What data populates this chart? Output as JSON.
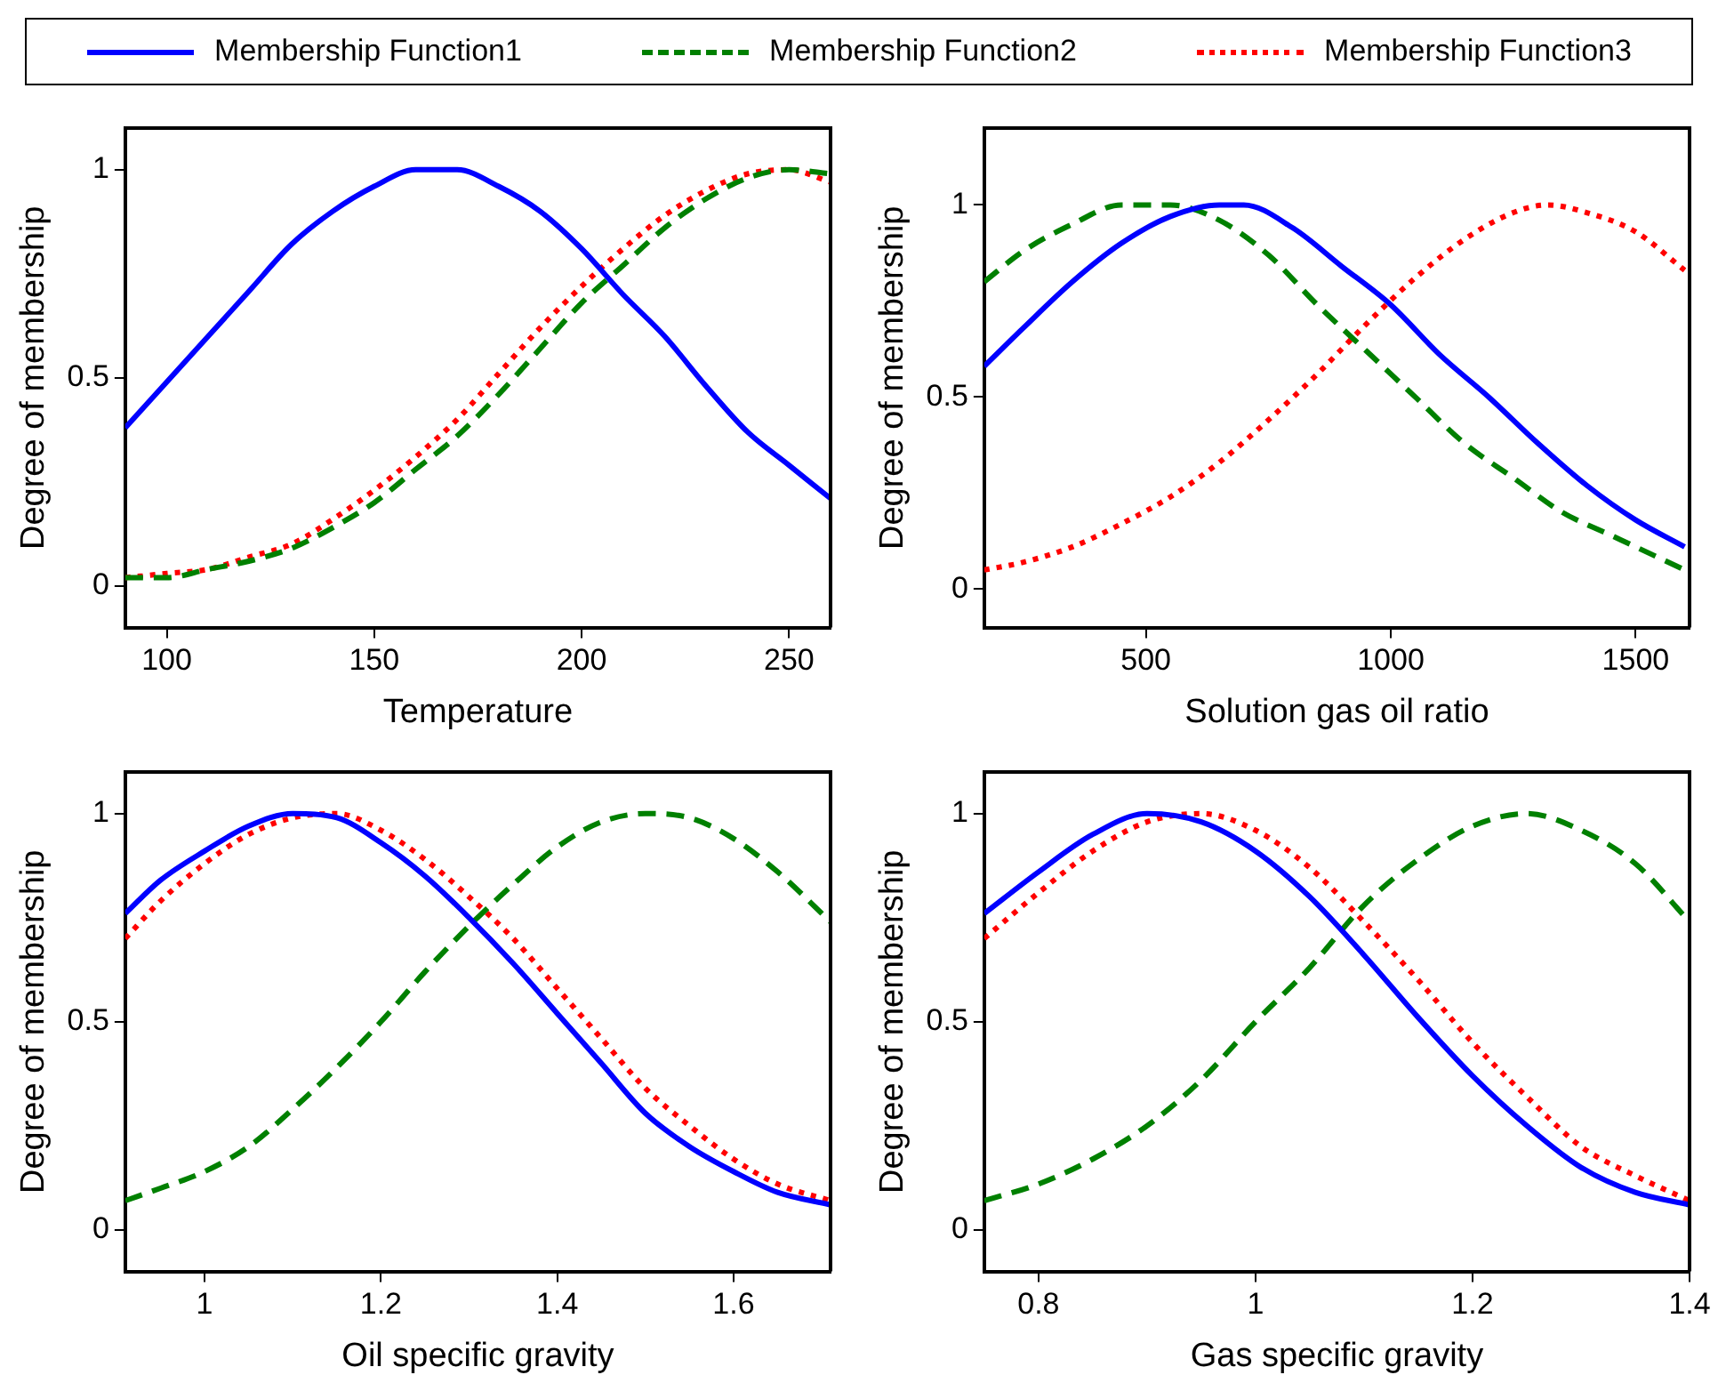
{
  "chart_data": [
    {
      "type": "line",
      "xlabel": "Temperature",
      "ylabel": "Degree of membership",
      "xlim": [
        90,
        260
      ],
      "xticks": [
        100,
        150,
        200,
        250
      ],
      "ylim": [
        -0.1,
        1.1
      ],
      "yticks": [
        0,
        0.5,
        1
      ],
      "grid": false,
      "legend": "top",
      "marker": "none",
      "series": [
        {
          "name": "Membership Function1",
          "color": "#0000ff",
          "line_style": "solid",
          "x": [
            90,
            100,
            110,
            120,
            130,
            140,
            150,
            160,
            165,
            170,
            180,
            190,
            200,
            210,
            220,
            230,
            240,
            250,
            260
          ],
          "values": [
            0.38,
            0.49,
            0.6,
            0.71,
            0.82,
            0.9,
            0.96,
            1.0,
            1.0,
            1.0,
            0.96,
            0.9,
            0.81,
            0.7,
            0.6,
            0.48,
            0.37,
            0.29,
            0.21
          ]
        },
        {
          "name": "Membership Function2",
          "color": "#008000",
          "line_style": "dashed",
          "x": [
            90,
            100,
            110,
            120,
            130,
            140,
            150,
            160,
            170,
            180,
            190,
            200,
            210,
            220,
            230,
            240,
            250,
            260
          ],
          "values": [
            0.02,
            0.02,
            0.04,
            0.06,
            0.09,
            0.14,
            0.2,
            0.28,
            0.36,
            0.46,
            0.57,
            0.68,
            0.77,
            0.86,
            0.93,
            0.98,
            1.0,
            0.99
          ]
        },
        {
          "name": "Membership Function3",
          "color": "#ff0000",
          "line_style": "dotted",
          "x": [
            90,
            100,
            110,
            120,
            130,
            140,
            150,
            160,
            170,
            180,
            190,
            200,
            210,
            220,
            230,
            240,
            250,
            260
          ],
          "values": [
            0.02,
            0.03,
            0.04,
            0.07,
            0.1,
            0.16,
            0.23,
            0.31,
            0.4,
            0.51,
            0.62,
            0.72,
            0.81,
            0.89,
            0.95,
            0.99,
            1.0,
            0.97
          ]
        }
      ]
    },
    {
      "type": "line",
      "xlabel": "Solution gas oil ratio",
      "ylabel": "Degree of membership",
      "xlim": [
        170,
        1610
      ],
      "xticks": [
        500,
        1000,
        1500
      ],
      "ylim": [
        -0.1,
        1.2
      ],
      "yticks": [
        0,
        0.5,
        1
      ],
      "grid": false,
      "marker": "none",
      "series": [
        {
          "color": "#0000ff",
          "line_style": "solid",
          "x": [
            170,
            250,
            350,
            450,
            550,
            650,
            700,
            800,
            900,
            1000,
            1100,
            1200,
            1300,
            1400,
            1500,
            1600
          ],
          "values": [
            0.58,
            0.68,
            0.8,
            0.9,
            0.97,
            1.0,
            1.0,
            0.94,
            0.84,
            0.74,
            0.61,
            0.5,
            0.38,
            0.27,
            0.18,
            0.11
          ]
        },
        {
          "color": "#008000",
          "line_style": "dashed",
          "x": [
            170,
            250,
            350,
            450,
            550,
            650,
            750,
            850,
            950,
            1050,
            1150,
            1250,
            1350,
            1450,
            1600
          ],
          "values": [
            0.8,
            0.88,
            0.95,
            1.0,
            1.0,
            0.96,
            0.87,
            0.74,
            0.62,
            0.5,
            0.38,
            0.29,
            0.2,
            0.14,
            0.05
          ]
        },
        {
          "color": "#ff0000",
          "line_style": "dotted",
          "x": [
            170,
            250,
            350,
            450,
            550,
            650,
            750,
            850,
            950,
            1050,
            1150,
            1250,
            1320,
            1400,
            1500,
            1600
          ],
          "values": [
            0.05,
            0.07,
            0.11,
            0.17,
            0.24,
            0.33,
            0.44,
            0.56,
            0.69,
            0.81,
            0.91,
            0.98,
            1.0,
            0.98,
            0.93,
            0.83
          ]
        }
      ]
    },
    {
      "type": "line",
      "xlabel": "Oil specific gravity",
      "ylabel": "Degree of membership",
      "xlim": [
        0.91,
        1.71
      ],
      "xticks": [
        1,
        1.2,
        1.4,
        1.6
      ],
      "ylim": [
        -0.1,
        1.1
      ],
      "yticks": [
        0,
        0.5,
        1
      ],
      "grid": false,
      "marker": "none",
      "series": [
        {
          "color": "#0000ff",
          "line_style": "solid",
          "x": [
            0.91,
            0.95,
            1.0,
            1.05,
            1.1,
            1.15,
            1.2,
            1.25,
            1.3,
            1.35,
            1.4,
            1.45,
            1.5,
            1.55,
            1.6,
            1.65,
            1.71
          ],
          "values": [
            0.76,
            0.84,
            0.91,
            0.97,
            1.0,
            0.99,
            0.93,
            0.85,
            0.75,
            0.64,
            0.52,
            0.4,
            0.28,
            0.2,
            0.14,
            0.09,
            0.06
          ]
        },
        {
          "color": "#008000",
          "line_style": "dashed",
          "x": [
            0.91,
            0.95,
            1.0,
            1.05,
            1.1,
            1.15,
            1.2,
            1.25,
            1.3,
            1.35,
            1.4,
            1.45,
            1.5,
            1.55,
            1.6,
            1.65,
            1.71
          ],
          "values": [
            0.07,
            0.1,
            0.14,
            0.2,
            0.29,
            0.39,
            0.5,
            0.62,
            0.73,
            0.83,
            0.92,
            0.98,
            1.0,
            0.99,
            0.94,
            0.86,
            0.74
          ]
        },
        {
          "color": "#ff0000",
          "line_style": "dotted",
          "x": [
            0.91,
            0.95,
            1.0,
            1.05,
            1.1,
            1.15,
            1.2,
            1.25,
            1.3,
            1.35,
            1.4,
            1.45,
            1.5,
            1.55,
            1.6,
            1.65,
            1.71
          ],
          "values": [
            0.7,
            0.79,
            0.88,
            0.95,
            0.99,
            1.0,
            0.96,
            0.89,
            0.8,
            0.7,
            0.58,
            0.46,
            0.34,
            0.25,
            0.17,
            0.11,
            0.07
          ]
        }
      ]
    },
    {
      "type": "line",
      "xlabel": "Gas specific gravity",
      "ylabel": "Degree of membership",
      "xlim": [
        0.75,
        1.4
      ],
      "xticks": [
        0.8,
        1,
        1.2,
        1.4
      ],
      "ylim": [
        -0.1,
        1.1
      ],
      "yticks": [
        0,
        0.5,
        1
      ],
      "grid": false,
      "marker": "none",
      "series": [
        {
          "color": "#0000ff",
          "line_style": "solid",
          "x": [
            0.75,
            0.8,
            0.85,
            0.9,
            0.95,
            1.0,
            1.05,
            1.1,
            1.15,
            1.2,
            1.25,
            1.3,
            1.35,
            1.4
          ],
          "values": [
            0.76,
            0.86,
            0.95,
            1.0,
            0.98,
            0.91,
            0.8,
            0.66,
            0.51,
            0.37,
            0.25,
            0.15,
            0.09,
            0.06
          ]
        },
        {
          "color": "#008000",
          "line_style": "dashed",
          "x": [
            0.75,
            0.8,
            0.85,
            0.9,
            0.95,
            1.0,
            1.05,
            1.1,
            1.15,
            1.2,
            1.25,
            1.3,
            1.35,
            1.4
          ],
          "values": [
            0.07,
            0.11,
            0.17,
            0.25,
            0.36,
            0.5,
            0.63,
            0.78,
            0.89,
            0.97,
            1.0,
            0.96,
            0.88,
            0.74
          ]
        },
        {
          "color": "#ff0000",
          "line_style": "dotted",
          "x": [
            0.75,
            0.8,
            0.85,
            0.9,
            0.95,
            1.0,
            1.05,
            1.1,
            1.15,
            1.2,
            1.25,
            1.3,
            1.35,
            1.4
          ],
          "values": [
            0.7,
            0.81,
            0.91,
            0.98,
            1.0,
            0.96,
            0.87,
            0.74,
            0.6,
            0.45,
            0.32,
            0.2,
            0.13,
            0.07
          ]
        }
      ]
    }
  ]
}
